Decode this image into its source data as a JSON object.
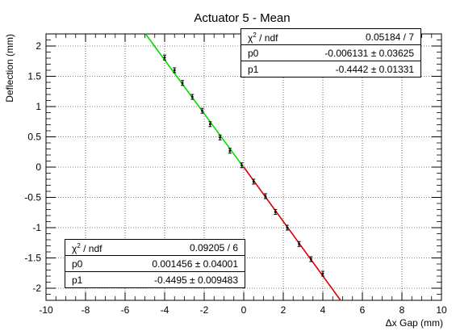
{
  "chart_data": {
    "type": "scatter",
    "title": "Actuator 5 - Mean",
    "xlabel": "Δx Gap (mm)",
    "ylabel": "Deflection (mm)",
    "xlim": [
      -10,
      10
    ],
    "ylim": [
      -2.2,
      2.2
    ],
    "xticks": [
      -10,
      -8,
      -6,
      -4,
      -2,
      0,
      2,
      4,
      6,
      8,
      10
    ],
    "yticks": [
      -2,
      -1.5,
      -1,
      -0.5,
      0,
      0.5,
      1,
      1.5,
      2
    ],
    "grid": true,
    "series": [
      {
        "points": [
          {
            "x": -4.0,
            "y": 1.81,
            "err": 0.04
          },
          {
            "x": -3.5,
            "y": 1.6,
            "err": 0.04
          },
          {
            "x": -3.1,
            "y": 1.39,
            "err": 0.04
          },
          {
            "x": -2.6,
            "y": 1.16,
            "err": 0.04
          },
          {
            "x": -2.1,
            "y": 0.93,
            "err": 0.04
          },
          {
            "x": -1.7,
            "y": 0.71,
            "err": 0.04
          },
          {
            "x": -1.2,
            "y": 0.49,
            "err": 0.04
          },
          {
            "x": -0.7,
            "y": 0.27,
            "err": 0.04
          },
          {
            "x": -0.1,
            "y": 0.03,
            "err": 0.04
          },
          {
            "x": 0.5,
            "y": -0.24,
            "err": 0.04
          },
          {
            "x": 1.1,
            "y": -0.48,
            "err": 0.04
          },
          {
            "x": 1.6,
            "y": -0.74,
            "err": 0.04
          },
          {
            "x": 2.2,
            "y": -1.0,
            "err": 0.04
          },
          {
            "x": 2.8,
            "y": -1.27,
            "err": 0.04
          },
          {
            "x": 3.4,
            "y": -1.52,
            "err": 0.04
          },
          {
            "x": 4.0,
            "y": -1.76,
            "err": 0.04
          }
        ]
      }
    ],
    "fits": [
      {
        "color": "#00dd00",
        "x_range": [
          -5,
          0
        ],
        "p0": -0.006131,
        "p1": -0.4442
      },
      {
        "color": "#dd0000",
        "x_range": [
          0,
          5
        ],
        "p0": 0.001456,
        "p1": -0.4495
      }
    ]
  },
  "stats_top": {
    "chi2_label": "χ",
    "chi2_suffix": " / ndf",
    "chi2_value": "0.05184 / 7",
    "p0_label": "p0",
    "p0_value": "-0.006131 ± 0.03625",
    "p1_label": "p1",
    "p1_value": "-0.4442 ± 0.01331"
  },
  "stats_bottom": {
    "chi2_label": "χ",
    "chi2_suffix": " / ndf",
    "chi2_value": "0.09205 / 6",
    "p0_label": "p0",
    "p0_value": "0.001456 ± 0.04001",
    "p1_label": "p1",
    "p1_value": "-0.4495 ± 0.009483"
  }
}
